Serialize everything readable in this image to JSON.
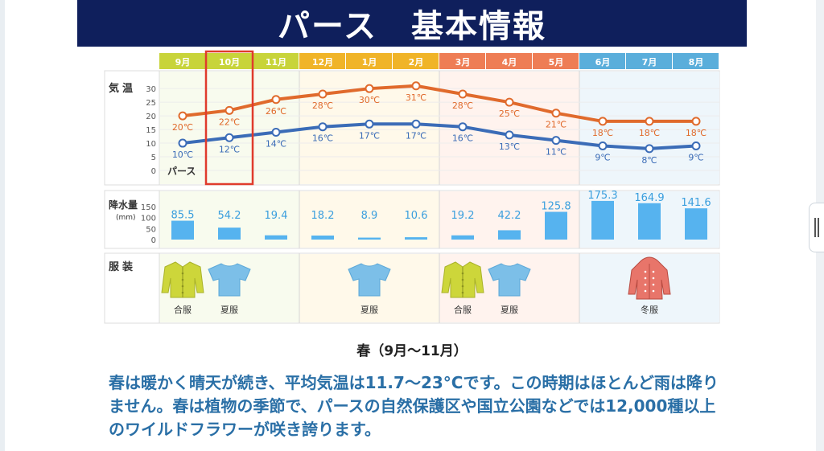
{
  "page": {
    "title": "パース　基本情報"
  },
  "chart_data": {
    "type": "line",
    "location_label": "パース",
    "months": [
      "9月",
      "10月",
      "11月",
      "12月",
      "1月",
      "2月",
      "3月",
      "4月",
      "5月",
      "6月",
      "7月",
      "8月"
    ],
    "highlight_month": "10月",
    "season_colors": [
      "#c8d43a",
      "#f0b428",
      "#ee7d55",
      "#5aaedb"
    ],
    "temperature": {
      "label": "気温",
      "y_ticks": [
        0,
        5,
        10,
        15,
        20,
        25,
        30
      ],
      "ylim": [
        0,
        33
      ],
      "series": [
        {
          "color": "#e06a2c",
          "values": [
            20,
            22,
            26,
            28,
            30,
            31,
            28,
            25,
            21,
            18,
            18,
            18
          ],
          "labels": [
            "20℃",
            "22℃",
            "26℃",
            "28℃",
            "30℃",
            "31℃",
            "28℃",
            "25℃",
            "21℃",
            "18℃",
            "18℃",
            "18℃"
          ]
        },
        {
          "color": "#3b6cb7",
          "values": [
            10,
            12,
            14,
            16,
            17,
            17,
            16,
            13,
            11,
            9,
            8,
            9
          ],
          "labels": [
            "10℃",
            "12℃",
            "14℃",
            "16℃",
            "17℃",
            "17℃",
            "16℃",
            "13℃",
            "11℃",
            "9℃",
            "8℃",
            "9℃"
          ]
        }
      ]
    },
    "precipitation": {
      "label": "降水量",
      "unit": "(mm)",
      "y_ticks": [
        0,
        50,
        100,
        150
      ],
      "ylim": [
        0,
        175
      ],
      "values": [
        85.5,
        54.2,
        19.4,
        18.2,
        8.9,
        10.6,
        19.2,
        42.2,
        125.8,
        175.3,
        164.9,
        141.6
      ],
      "labels": [
        "85.5",
        "54.2",
        "19.4",
        "18.2",
        "8.9",
        "10.6",
        "19.2",
        "42.2",
        "125.8",
        "175.3",
        "164.9",
        "141.6"
      ]
    },
    "clothing": {
      "label": "服装",
      "items": [
        {
          "label": "合服",
          "month": 0,
          "type": "jacket",
          "color": "#cdd63a"
        },
        {
          "label": "夏服",
          "month": 1,
          "type": "tshirt",
          "color": "#7cbfe8"
        },
        {
          "label": "夏服",
          "month": 4,
          "type": "tshirt",
          "color": "#7cbfe8"
        },
        {
          "label": "合服",
          "month": 6,
          "type": "jacket",
          "color": "#cdd63a"
        },
        {
          "label": "夏服",
          "month": 7,
          "type": "tshirt",
          "color": "#7cbfe8"
        },
        {
          "label": "冬服",
          "month": 10,
          "type": "coat",
          "color": "#e8756a"
        }
      ]
    }
  },
  "caption": "春（9月〜11月）",
  "body_text": "春は暖かく晴天が続き、平均気温は11.7〜23°Cです。この時期はほとんど雨は降りません。春は植物の季節で、パースの自然保護区や国立公園などでは12,000種以上のワイルドフラワーが咲き誇ります。"
}
